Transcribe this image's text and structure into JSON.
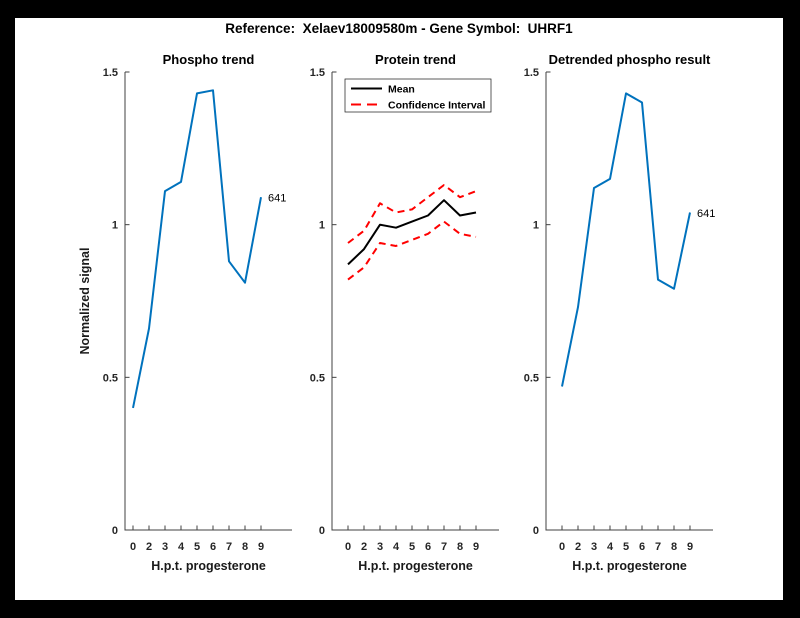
{
  "figure": {
    "title": "Reference:  Xelaev18009580m - Gene Symbol:  UHRF1",
    "background_color": "#000000",
    "canvas_color": "#ffffff",
    "axis_color": "#404040",
    "accent_blue": "#0072bd",
    "accent_red": "#ff0000"
  },
  "shared_axes": {
    "xlabel": "H.p.t. progesterone",
    "ylabel": "Normalized signal",
    "x_tick_labels": [
      "0",
      "2",
      "3",
      "4",
      "5",
      "6",
      "7",
      "8",
      "9"
    ],
    "y_tick_labels": [
      "0",
      "0.5",
      "1",
      "1.5"
    ],
    "y_tick_values": [
      0,
      0.5,
      1,
      1.5
    ],
    "ylim": [
      0,
      1.5
    ],
    "grid": false
  },
  "chart_data": [
    {
      "id": "phospho-trend",
      "type": "line",
      "title": "Phospho trend",
      "xlabel": "H.p.t. progesterone",
      "ylabel": "Normalized signal",
      "x_tick_labels": [
        "0",
        "2",
        "3",
        "4",
        "5",
        "6",
        "7",
        "8",
        "9"
      ],
      "ylim": [
        0,
        1.5
      ],
      "series": [
        {
          "name": "phospho-signal",
          "color": "#0072bd",
          "line_style": "solid",
          "values": [
            0.4,
            0.66,
            1.11,
            1.14,
            1.43,
            1.44,
            0.88,
            0.81,
            1.09
          ]
        }
      ],
      "annotation": {
        "text": "641",
        "anchor": "last-point"
      }
    },
    {
      "id": "protein-trend",
      "type": "line",
      "title": "Protein trend",
      "xlabel": "H.p.t. progesterone",
      "x_tick_labels": [
        "0",
        "2",
        "3",
        "4",
        "5",
        "6",
        "7",
        "8",
        "9"
      ],
      "ylim": [
        0,
        1.5
      ],
      "series": [
        {
          "name": "mean",
          "color": "#000000",
          "line_style": "solid",
          "values": [
            0.87,
            0.92,
            1.0,
            0.99,
            1.01,
            1.03,
            1.08,
            1.03,
            1.04
          ]
        },
        {
          "name": "confidence-upper",
          "color": "#ff0000",
          "line_style": "dashed",
          "values": [
            0.94,
            0.98,
            1.07,
            1.04,
            1.05,
            1.09,
            1.13,
            1.09,
            1.11
          ]
        },
        {
          "name": "confidence-lower",
          "color": "#ff0000",
          "line_style": "dashed",
          "values": [
            0.82,
            0.86,
            0.94,
            0.93,
            0.95,
            0.97,
            1.01,
            0.97,
            0.96
          ]
        }
      ],
      "legend": {
        "position": "top-left",
        "entries": [
          {
            "label": "Mean",
            "color": "#000000",
            "line_style": "solid"
          },
          {
            "label": "Confidence Interval",
            "color": "#ff0000",
            "line_style": "dashed"
          }
        ]
      }
    },
    {
      "id": "detrended-phospho",
      "type": "line",
      "title": "Detrended phospho result",
      "xlabel": "H.p.t. progesterone",
      "x_tick_labels": [
        "0",
        "2",
        "3",
        "4",
        "5",
        "6",
        "7",
        "8",
        "9"
      ],
      "ylim": [
        0,
        1.5
      ],
      "series": [
        {
          "name": "detrended-signal",
          "color": "#0072bd",
          "line_style": "solid",
          "values": [
            0.47,
            0.73,
            1.12,
            1.15,
            1.43,
            1.4,
            0.82,
            0.79,
            1.04
          ]
        }
      ],
      "annotation": {
        "text": "641",
        "anchor": "last-point"
      }
    }
  ]
}
